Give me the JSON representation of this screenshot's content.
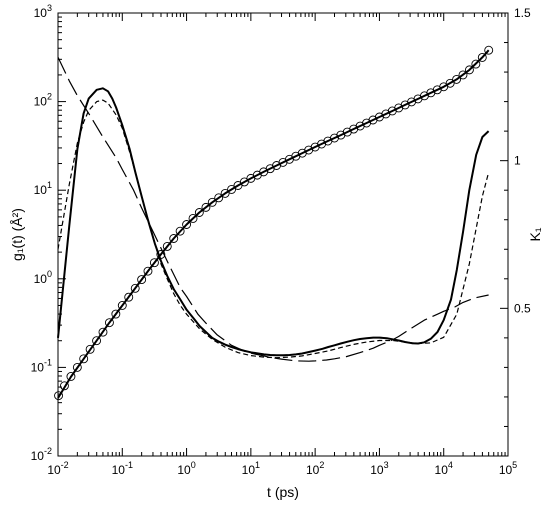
{
  "chart_data": {
    "type": "line",
    "title": "",
    "xlabel": "t (ps)",
    "ylabel_left": "g₁(t) (Å²)",
    "ylabel_right": "K₁",
    "x_scale": "log",
    "y_left_scale": "log",
    "xlim": [
      0.01,
      100000
    ],
    "ylim_left": [
      0.01,
      1000
    ],
    "ylim_right": [
      0,
      1.5
    ],
    "grid": false,
    "legend": "none",
    "x_ticks": [
      {
        "value": 0.01,
        "base": "10",
        "exp": "-2"
      },
      {
        "value": 0.1,
        "base": "10",
        "exp": "-1"
      },
      {
        "value": 1,
        "base": "10",
        "exp": "0"
      },
      {
        "value": 10,
        "base": "10",
        "exp": "1"
      },
      {
        "value": 100,
        "base": "10",
        "exp": "2"
      },
      {
        "value": 1000,
        "base": "10",
        "exp": "3"
      },
      {
        "value": 10000,
        "base": "10",
        "exp": "4"
      },
      {
        "value": 100000,
        "base": "10",
        "exp": "5"
      }
    ],
    "y_left_ticks": [
      {
        "value": 0.01,
        "base": "10",
        "exp": "-2"
      },
      {
        "value": 0.1,
        "base": "10",
        "exp": "-1"
      },
      {
        "value": 1,
        "base": "10",
        "exp": "0"
      },
      {
        "value": 10,
        "base": "10",
        "exp": "1"
      },
      {
        "value": 100,
        "base": "10",
        "exp": "2"
      },
      {
        "value": 1000,
        "base": "10",
        "exp": "3"
      }
    ],
    "y_right_ticks": [
      {
        "value": 0.5,
        "label": "0.5"
      },
      {
        "value": 1,
        "label": "1"
      },
      {
        "value": 1.5,
        "label": "1.5"
      }
    ],
    "series": [
      {
        "axis": "left",
        "style": "markers",
        "marker": "circle",
        "x": [
          0.0102,
          0.0126,
          0.0159,
          0.02,
          0.0251,
          0.0316,
          0.0398,
          0.0501,
          0.0631,
          0.0794,
          0.1,
          0.126,
          0.159,
          0.2,
          0.251,
          0.316,
          0.398,
          0.501,
          0.631,
          0.794,
          1,
          1.26,
          1.58,
          2,
          2.51,
          3.16,
          3.98,
          5.01,
          6.31,
          7.94,
          10,
          12.6,
          15.8,
          20,
          25.1,
          31.6,
          39.8,
          50.1,
          63.1,
          79.4,
          100,
          126,
          158,
          200,
          251,
          316,
          398,
          501,
          631,
          794,
          1000,
          1259,
          1585,
          1995,
          2512,
          3162,
          3981,
          5012,
          6310,
          7943,
          10000,
          12590,
          15850,
          19950,
          25120,
          31620,
          39810,
          50120
        ],
        "y": [
          0.048,
          0.062,
          0.079,
          0.1,
          0.125,
          0.16,
          0.2,
          0.25,
          0.32,
          0.4,
          0.5,
          0.62,
          0.78,
          0.98,
          1.22,
          1.52,
          1.88,
          2.32,
          2.85,
          3.45,
          4.1,
          4.8,
          5.6,
          6.4,
          7.3,
          8.2,
          9.2,
          10.2,
          11.3,
          12.4,
          13.6,
          14.8,
          16.1,
          17.5,
          19,
          20.6,
          22.3,
          24.2,
          26.2,
          28.4,
          30.7,
          33.2,
          35.9,
          38.8,
          41.9,
          45.3,
          49,
          53,
          57.3,
          62,
          67,
          72.5,
          78.4,
          84.8,
          91.7,
          99.2,
          107.3,
          116.1,
          125.6,
          135.9,
          147,
          161,
          178,
          200,
          228,
          265,
          315,
          380
        ]
      },
      {
        "axis": "left",
        "style": "solid",
        "x": [
          0.01,
          0.0158,
          0.0251,
          0.0398,
          0.0631,
          0.1,
          0.158,
          0.251,
          0.398,
          0.631,
          1,
          1.58,
          2.51,
          3.98,
          6.31,
          10,
          15.8,
          25.1,
          39.8,
          63.1,
          100,
          158,
          251,
          398,
          631,
          1000,
          1585,
          2512,
          3981,
          6310,
          10000,
          15850,
          25120,
          39810,
          50120
        ],
        "y": [
          0.045,
          0.078,
          0.125,
          0.2,
          0.32,
          0.5,
          0.78,
          1.22,
          1.88,
          2.85,
          4.1,
          5.6,
          7.3,
          9.2,
          11.3,
          13.6,
          16.1,
          19,
          22.3,
          26.2,
          30.7,
          35.9,
          41.9,
          49,
          57.3,
          67,
          78.4,
          91.7,
          107.3,
          125.6,
          147,
          178,
          228,
          315,
          380
        ]
      },
      {
        "axis": "right",
        "style": "solid",
        "x": [
          0.01,
          0.015,
          0.02,
          0.025,
          0.03,
          0.04,
          0.05,
          0.06,
          0.07,
          0.08,
          0.1,
          0.13,
          0.16,
          0.2,
          0.25,
          0.32,
          0.4,
          0.5,
          0.63,
          0.8,
          1,
          1.3,
          1.6,
          2,
          2.5,
          3.2,
          4,
          5,
          6.3,
          8,
          10,
          13,
          16,
          20,
          25,
          32,
          40,
          50,
          63,
          80,
          100,
          130,
          160,
          200,
          250,
          320,
          400,
          500,
          630,
          800,
          1000,
          1300,
          1600,
          2000,
          2500,
          3200,
          4000,
          5000,
          6300,
          8000,
          10000,
          13000,
          16000,
          20000,
          25000,
          32000,
          40000,
          50000
        ],
        "y": [
          0.4,
          0.78,
          1.04,
          1.16,
          1.21,
          1.24,
          1.245,
          1.235,
          1.21,
          1.18,
          1.12,
          1.04,
          0.96,
          0.88,
          0.8,
          0.72,
          0.66,
          0.61,
          0.565,
          0.53,
          0.495,
          0.465,
          0.44,
          0.42,
          0.4,
          0.387,
          0.377,
          0.369,
          0.362,
          0.356,
          0.351,
          0.347,
          0.344,
          0.342,
          0.341,
          0.341,
          0.342,
          0.344,
          0.347,
          0.352,
          0.357,
          0.363,
          0.369,
          0.375,
          0.381,
          0.387,
          0.392,
          0.396,
          0.399,
          0.401,
          0.401,
          0.399,
          0.395,
          0.391,
          0.386,
          0.382,
          0.381,
          0.385,
          0.397,
          0.42,
          0.46,
          0.53,
          0.63,
          0.76,
          0.9,
          1.02,
          1.08,
          1.1
        ]
      },
      {
        "axis": "right",
        "style": "short-dash",
        "x": [
          0.01,
          0.015,
          0.02,
          0.025,
          0.03,
          0.04,
          0.05,
          0.06,
          0.08,
          0.1,
          0.13,
          0.16,
          0.2,
          0.25,
          0.32,
          0.4,
          0.5,
          0.63,
          0.8,
          1,
          1.6,
          2.5,
          4,
          6.3,
          10,
          16,
          25,
          40,
          63,
          100,
          160,
          250,
          400,
          630,
          1000,
          1600,
          2500,
          4000,
          6300,
          10000,
          16000,
          25000,
          40000,
          50000
        ],
        "y": [
          0.7,
          0.92,
          1.06,
          1.13,
          1.17,
          1.2,
          1.205,
          1.195,
          1.155,
          1.11,
          1.03,
          0.96,
          0.88,
          0.8,
          0.72,
          0.65,
          0.6,
          0.55,
          0.51,
          0.48,
          0.43,
          0.395,
          0.368,
          0.35,
          0.34,
          0.335,
          0.333,
          0.335,
          0.339,
          0.347,
          0.356,
          0.367,
          0.378,
          0.386,
          0.391,
          0.391,
          0.386,
          0.381,
          0.383,
          0.402,
          0.48,
          0.65,
          0.88,
          0.96
        ]
      },
      {
        "axis": "right",
        "style": "long-dash",
        "x": [
          0.01,
          0.015,
          0.02,
          0.03,
          0.05,
          0.08,
          0.1,
          0.15,
          0.2,
          0.3,
          0.5,
          0.8,
          1,
          1.5,
          2,
          3,
          5,
          8,
          10,
          15,
          20,
          30,
          50,
          80,
          100,
          150,
          200,
          300,
          500,
          800,
          1000,
          1500,
          2000,
          3000,
          5000,
          8000,
          10000,
          15000,
          20000,
          30000,
          50000
        ],
        "y": [
          1.35,
          1.27,
          1.22,
          1.16,
          1.08,
          1.01,
          0.97,
          0.9,
          0.84,
          0.76,
          0.66,
          0.57,
          0.54,
          0.48,
          0.45,
          0.41,
          0.375,
          0.355,
          0.348,
          0.34,
          0.334,
          0.328,
          0.322,
          0.321,
          0.322,
          0.325,
          0.329,
          0.336,
          0.35,
          0.365,
          0.375,
          0.39,
          0.405,
          0.43,
          0.46,
          0.48,
          0.49,
          0.505,
          0.52,
          0.535,
          0.545
        ]
      }
    ]
  }
}
